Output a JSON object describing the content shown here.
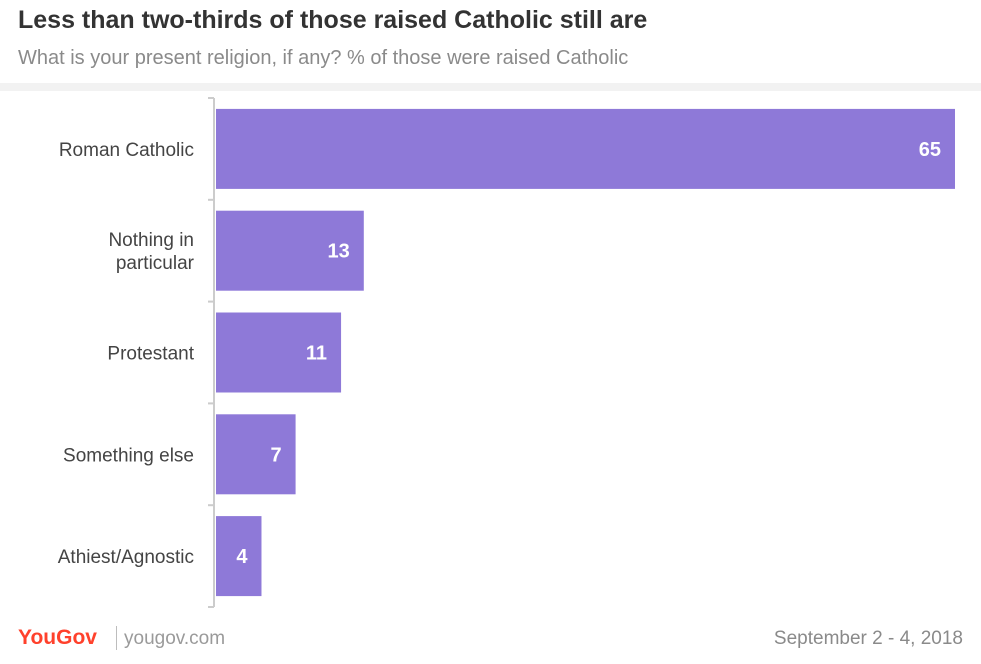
{
  "chart_data": {
    "type": "bar",
    "orientation": "horizontal",
    "title": "Less than two-thirds of those raised Catholic still are",
    "subtitle": "What is your present religion, if any? % of those were raised Catholic",
    "categories": [
      [
        "Roman Catholic"
      ],
      [
        "Nothing in",
        "particular"
      ],
      [
        "Protestant"
      ],
      [
        "Something else"
      ],
      [
        "Athiest/Agnostic"
      ]
    ],
    "values": [
      65,
      13,
      11,
      7,
      4
    ],
    "xlim": [
      0,
      65
    ],
    "bar_color": "#8e79d8",
    "grid": false,
    "data_labels": true
  },
  "footer": {
    "brand": "YouGov",
    "url": "yougov.com",
    "date": "September 2 - 4, 2018"
  }
}
